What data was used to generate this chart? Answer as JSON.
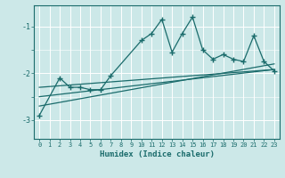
{
  "xlabel": "Humidex (Indice chaleur)",
  "bg_color": "#cce8e8",
  "line_color": "#1a6b6b",
  "grid_major_color": "#b0d8d8",
  "grid_minor_color": "#d8eeee",
  "xlim": [
    -0.5,
    23.5
  ],
  "ylim": [
    -3.4,
    -0.55
  ],
  "yticks": [
    -3,
    -2,
    -1
  ],
  "xticks": [
    0,
    1,
    2,
    3,
    4,
    5,
    6,
    7,
    8,
    9,
    10,
    11,
    12,
    13,
    14,
    15,
    16,
    17,
    18,
    19,
    20,
    21,
    22,
    23
  ],
  "main_x": [
    0,
    2,
    3,
    4,
    5,
    6,
    7,
    10,
    11,
    12,
    13,
    14,
    15,
    16,
    17,
    18,
    19,
    20,
    21,
    22,
    23
  ],
  "main_y": [
    -2.9,
    -2.1,
    -2.3,
    -2.3,
    -2.35,
    -2.35,
    -2.05,
    -1.3,
    -1.15,
    -0.85,
    -1.55,
    -1.15,
    -0.8,
    -1.5,
    -1.7,
    -1.6,
    -1.7,
    -1.75,
    -1.2,
    -1.75,
    -1.95
  ],
  "line1_x": [
    0,
    23
  ],
  "line1_y": [
    -2.7,
    -1.8
  ],
  "line2_x": [
    0,
    23
  ],
  "line2_y": [
    -2.5,
    -1.92
  ],
  "line3_x": [
    0,
    23
  ],
  "line3_y": [
    -2.3,
    -1.92
  ]
}
